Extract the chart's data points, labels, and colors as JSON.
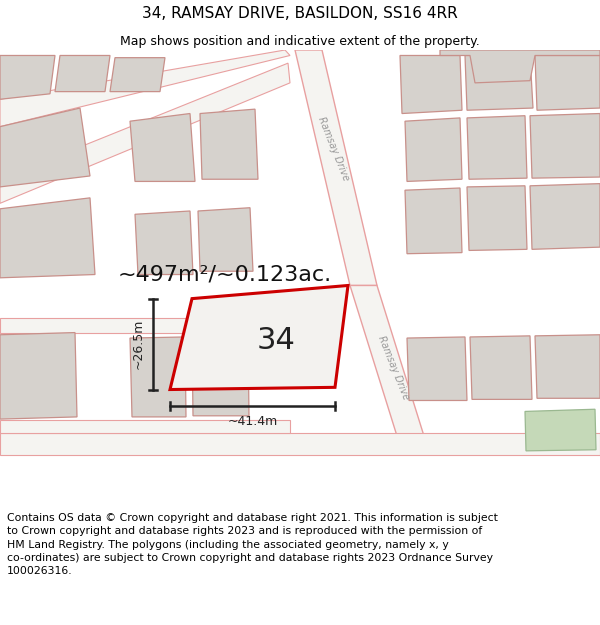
{
  "title": "34, RAMSAY DRIVE, BASILDON, SS16 4RR",
  "subtitle": "Map shows position and indicative extent of the property.",
  "footer": "Contains OS data © Crown copyright and database right 2021. This information is subject\nto Crown copyright and database rights 2023 and is reproduced with the permission of\nHM Land Registry. The polygons (including the associated geometry, namely x, y\nco-ordinates) are subject to Crown copyright and database rights 2023 Ordnance Survey\n100026316.",
  "area_label": "~497m²/~0.123ac.",
  "width_label": "~41.4m",
  "height_label": "~26.5m",
  "house_number": "34",
  "map_bg": "#f9f8f6",
  "road_line_color": "#e8a0a0",
  "building_fill": "#d6d2cd",
  "building_line_color": "#c8908a",
  "plot_line_color": "#cc0000",
  "dim_color": "#222222",
  "green_color": "#c5d9b8",
  "green_edge": "#9ab890",
  "title_fontsize": 11,
  "subtitle_fontsize": 9,
  "footer_fontsize": 7.8,
  "area_fontsize": 16,
  "num_fontsize": 22,
  "dim_fontsize": 9
}
